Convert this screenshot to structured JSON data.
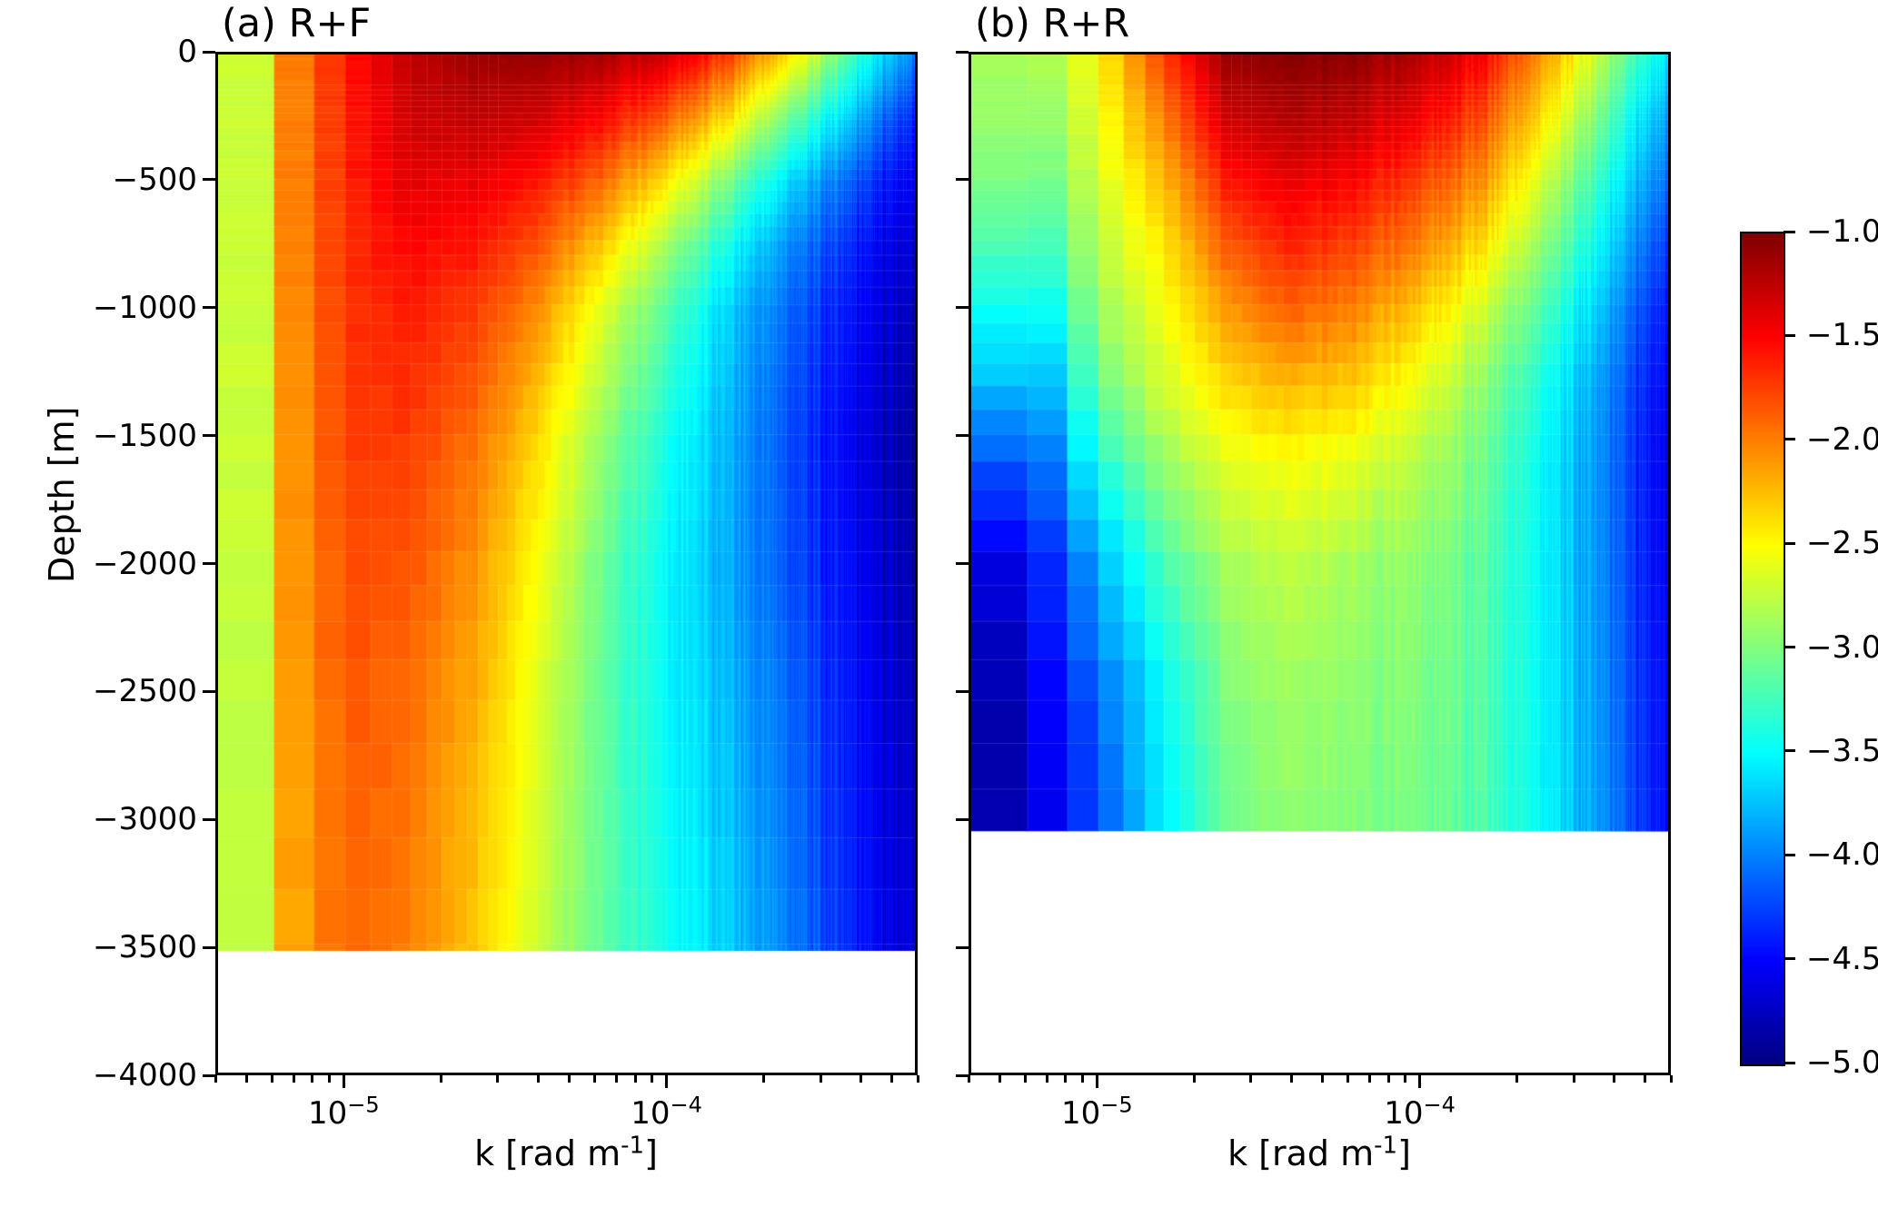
{
  "labels": {
    "ylabel": "Depth [m]",
    "yticks": [
      "0",
      "−500",
      "−1000",
      "−1500",
      "−2000",
      "−2500",
      "−3000",
      "−3500",
      "−4000"
    ],
    "xticks": [
      {
        "base": "10",
        "exp": "−5"
      },
      {
        "base": "10",
        "exp": "−4"
      }
    ],
    "xlabel_prefix": "k [rad m",
    "xlabel_sup": "-1",
    "xlabel_suffix": "]",
    "cbar_ticks": [
      "−1.0",
      "−1.5",
      "−2.0",
      "−2.5",
      "−3.0",
      "−3.5",
      "−4.0",
      "−4.5",
      "−5.0"
    ]
  },
  "chart_data": {
    "type": "heatmap",
    "x": {
      "label": "k [rad m^-1]",
      "scale": "log",
      "min": 4e-06,
      "max": 0.0006,
      "major_ticks": [
        1e-05,
        0.0001
      ]
    },
    "y": {
      "label": "Depth [m]",
      "min": -4000,
      "max": 0,
      "tick_step": 500
    },
    "color": {
      "map": "jet",
      "vmin": -5,
      "vmax": -1,
      "ticks": [
        -1.0,
        -1.5,
        -2.0,
        -2.5,
        -3.0,
        -3.5,
        -4.0,
        -4.5,
        -5.0
      ]
    },
    "panels": [
      {
        "title": "(a) R+F",
        "data_bottom_depth_m": -3520,
        "log10_k": [
          -5.4,
          -5.3,
          -5.2,
          -5.0,
          -4.8,
          -4.6,
          -4.4,
          -4.2,
          -4.0,
          -3.8,
          -3.6,
          -3.4,
          -3.22
        ],
        "depth_m": [
          0,
          -250,
          -500,
          -750,
          -1000,
          -1500,
          -2000,
          -2500,
          -3000,
          -3520
        ],
        "log10_value_grid": [
          [
            -2.7,
            -2.7,
            -2.1,
            -1.6,
            -1.25,
            -1.12,
            -1.1,
            -1.15,
            -1.3,
            -1.75,
            -2.4,
            -3.3,
            -4.0
          ],
          [
            -2.7,
            -2.7,
            -2.1,
            -1.62,
            -1.3,
            -1.25,
            -1.32,
            -1.5,
            -1.85,
            -2.4,
            -3.1,
            -3.8,
            -4.4
          ],
          [
            -2.7,
            -2.7,
            -2.1,
            -1.65,
            -1.4,
            -1.42,
            -1.58,
            -1.9,
            -2.4,
            -3.05,
            -3.65,
            -4.2,
            -4.6
          ],
          [
            -2.7,
            -2.7,
            -2.1,
            -1.68,
            -1.5,
            -1.57,
            -1.82,
            -2.28,
            -2.85,
            -3.45,
            -3.95,
            -4.4,
            -4.72
          ],
          [
            -2.7,
            -2.7,
            -2.12,
            -1.7,
            -1.6,
            -1.72,
            -2.05,
            -2.6,
            -3.15,
            -3.7,
            -4.1,
            -4.5,
            -4.8
          ],
          [
            -2.7,
            -2.7,
            -2.15,
            -1.75,
            -1.72,
            -1.92,
            -2.35,
            -2.9,
            -3.4,
            -3.82,
            -4.2,
            -4.6,
            -4.9
          ],
          [
            -2.72,
            -2.72,
            -2.17,
            -1.8,
            -1.82,
            -2.06,
            -2.52,
            -3.05,
            -3.5,
            -3.85,
            -4.18,
            -4.55,
            -4.85
          ],
          [
            -2.74,
            -2.74,
            -2.2,
            -1.85,
            -1.9,
            -2.16,
            -2.62,
            -3.1,
            -3.5,
            -3.8,
            -4.1,
            -4.48,
            -4.8
          ],
          [
            -2.75,
            -2.75,
            -2.2,
            -1.87,
            -1.96,
            -2.22,
            -2.66,
            -3.1,
            -3.46,
            -3.75,
            -4.05,
            -4.45,
            -4.75
          ],
          [
            -2.75,
            -2.75,
            -2.22,
            -1.9,
            -2.0,
            -2.27,
            -2.7,
            -3.1,
            -3.42,
            -3.7,
            -4.0,
            -4.4,
            -4.7
          ]
        ]
      },
      {
        "title": "(b) R+R",
        "data_bottom_depth_m": -3050,
        "log10_k": [
          -5.4,
          -5.3,
          -5.2,
          -5.0,
          -4.8,
          -4.6,
          -4.4,
          -4.2,
          -4.0,
          -3.8,
          -3.6,
          -3.4,
          -3.22
        ],
        "depth_m": [
          0,
          -250,
          -500,
          -750,
          -1000,
          -1300,
          -1600,
          -2000,
          -2500,
          -3050
        ],
        "log10_value_grid": [
          [
            -2.85,
            -2.85,
            -2.9,
            -2.5,
            -1.75,
            -1.1,
            -1.03,
            -1.05,
            -1.2,
            -1.5,
            -2.1,
            -2.9,
            -3.6
          ],
          [
            -2.9,
            -2.9,
            -3.0,
            -2.58,
            -2.0,
            -1.3,
            -1.2,
            -1.25,
            -1.45,
            -1.8,
            -2.4,
            -3.2,
            -3.9
          ],
          [
            -3.0,
            -3.0,
            -3.15,
            -2.68,
            -2.25,
            -1.58,
            -1.42,
            -1.5,
            -1.75,
            -2.1,
            -2.7,
            -3.45,
            -4.1
          ],
          [
            -3.2,
            -3.2,
            -3.35,
            -2.78,
            -2.42,
            -1.85,
            -1.63,
            -1.75,
            -2.0,
            -2.4,
            -2.95,
            -3.65,
            -4.3
          ],
          [
            -3.45,
            -3.45,
            -3.6,
            -2.9,
            -2.55,
            -2.1,
            -1.88,
            -2.0,
            -2.3,
            -2.7,
            -3.2,
            -3.85,
            -4.45
          ],
          [
            -3.75,
            -3.75,
            -3.9,
            -3.1,
            -2.68,
            -2.36,
            -2.22,
            -2.3,
            -2.58,
            -2.95,
            -3.4,
            -4.0,
            -4.55
          ],
          [
            -4.15,
            -4.15,
            -4.2,
            -3.4,
            -2.9,
            -2.6,
            -2.52,
            -2.6,
            -2.8,
            -3.08,
            -3.5,
            -4.05,
            -4.6
          ],
          [
            -4.6,
            -4.6,
            -4.5,
            -3.8,
            -3.22,
            -2.85,
            -2.75,
            -2.85,
            -2.95,
            -3.15,
            -3.52,
            -4.05,
            -4.58
          ],
          [
            -4.8,
            -4.8,
            -4.62,
            -4.1,
            -3.48,
            -3.0,
            -2.88,
            -2.94,
            -3.0,
            -3.18,
            -3.52,
            -4.02,
            -4.52
          ],
          [
            -4.82,
            -4.82,
            -4.65,
            -4.2,
            -3.58,
            -3.06,
            -2.94,
            -2.98,
            -3.04,
            -3.2,
            -3.5,
            -4.0,
            -4.5
          ]
        ]
      }
    ]
  }
}
